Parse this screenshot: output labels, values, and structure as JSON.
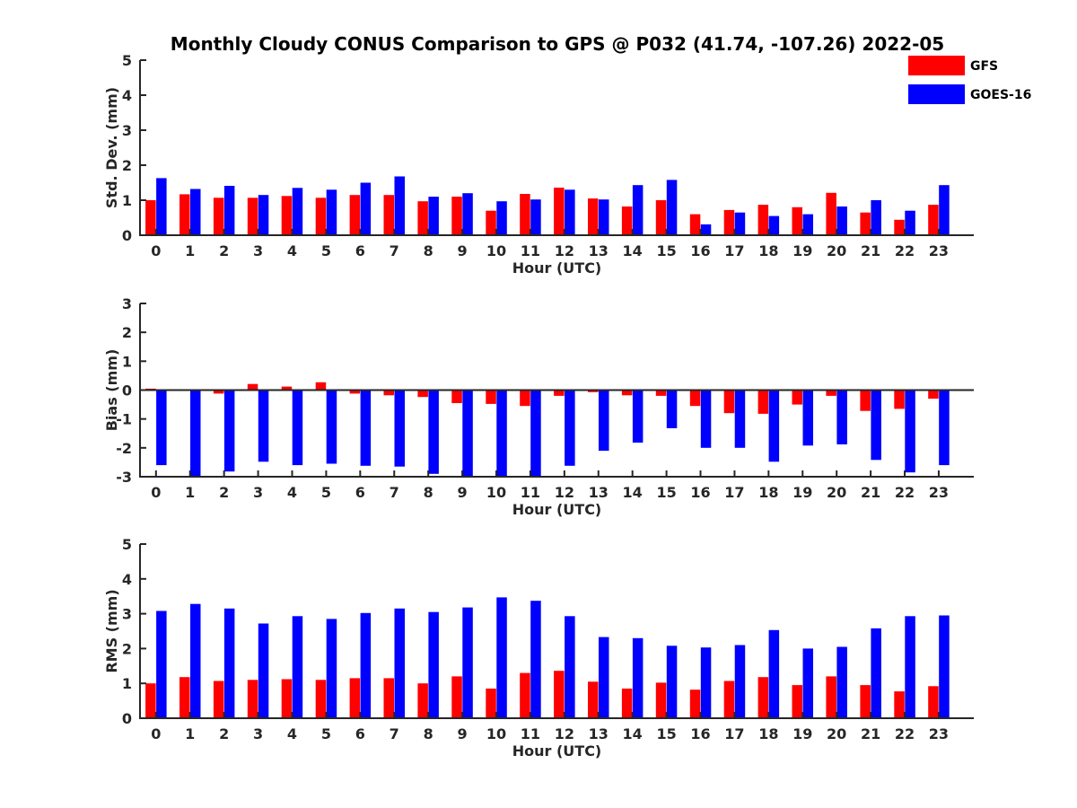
{
  "figure": {
    "title": "Monthly Cloudy CONUS Comparison to GPS @ P032 (41.74, -107.26) 2022-05"
  },
  "chart_data": [
    {
      "type": "bar",
      "id": "std",
      "ylabel": "Std. Dev. (mm)",
      "xlabel": "Hour (UTC)",
      "ylim": [
        0,
        5
      ],
      "yticks": [
        0,
        1,
        2,
        3,
        4,
        5
      ],
      "categories": [
        "0",
        "1",
        "2",
        "3",
        "4",
        "5",
        "6",
        "7",
        "8",
        "9",
        "10",
        "11",
        "12",
        "13",
        "14",
        "15",
        "16",
        "17",
        "18",
        "19",
        "20",
        "21",
        "22",
        "23"
      ],
      "series": [
        {
          "name": "GFS",
          "color": "#ff0000",
          "values": [
            1.0,
            1.17,
            1.07,
            1.07,
            1.12,
            1.07,
            1.15,
            1.15,
            0.97,
            1.1,
            0.7,
            1.18,
            1.36,
            1.05,
            0.82,
            1.0,
            0.6,
            0.72,
            0.87,
            0.8,
            1.21,
            0.65,
            0.44,
            0.87
          ]
        },
        {
          "name": "GOES-16",
          "color": "#0000ff",
          "values": [
            1.63,
            1.32,
            1.41,
            1.15,
            1.35,
            1.3,
            1.5,
            1.68,
            1.1,
            1.2,
            0.97,
            1.02,
            1.3,
            1.02,
            1.43,
            1.58,
            0.31,
            0.65,
            0.55,
            0.6,
            0.82,
            1.0,
            0.7,
            1.43
          ]
        }
      ],
      "legend": "top-right"
    },
    {
      "type": "bar",
      "id": "bias",
      "ylabel": "Bias (mm)",
      "xlabel": "Hour (UTC)",
      "ylim": [
        -3,
        3
      ],
      "yticks": [
        -3,
        -2,
        -1,
        0,
        1,
        2,
        3
      ],
      "categories": [
        "0",
        "1",
        "2",
        "3",
        "4",
        "5",
        "6",
        "7",
        "8",
        "9",
        "10",
        "11",
        "12",
        "13",
        "14",
        "15",
        "16",
        "17",
        "18",
        "19",
        "20",
        "21",
        "22",
        "23"
      ],
      "series": [
        {
          "name": "GFS",
          "color": "#ff0000",
          "values": [
            0.05,
            0.02,
            -0.12,
            0.21,
            0.12,
            0.27,
            -0.12,
            -0.18,
            -0.24,
            -0.45,
            -0.48,
            -0.55,
            -0.2,
            -0.07,
            -0.18,
            -0.2,
            -0.55,
            -0.8,
            -0.82,
            -0.5,
            -0.2,
            -0.72,
            -0.65,
            -0.3
          ]
        },
        {
          "name": "GOES-16",
          "color": "#0000ff",
          "values": [
            -2.6,
            -3.0,
            -2.82,
            -2.48,
            -2.6,
            -2.55,
            -2.62,
            -2.65,
            -2.9,
            -3.0,
            -3.0,
            -3.0,
            -2.62,
            -2.1,
            -1.82,
            -1.32,
            -2.0,
            -2.0,
            -2.48,
            -1.92,
            -1.88,
            -2.42,
            -2.85,
            -2.6
          ]
        }
      ]
    },
    {
      "type": "bar",
      "id": "rms",
      "ylabel": "RMS (mm)",
      "xlabel": "Hour (UTC)",
      "ylim": [
        0,
        5
      ],
      "yticks": [
        0,
        1,
        2,
        3,
        4,
        5
      ],
      "categories": [
        "0",
        "1",
        "2",
        "3",
        "4",
        "5",
        "6",
        "7",
        "8",
        "9",
        "10",
        "11",
        "12",
        "13",
        "14",
        "15",
        "16",
        "17",
        "18",
        "19",
        "20",
        "21",
        "22",
        "23"
      ],
      "series": [
        {
          "name": "GFS",
          "color": "#ff0000",
          "values": [
            1.0,
            1.18,
            1.07,
            1.1,
            1.12,
            1.1,
            1.15,
            1.15,
            1.0,
            1.2,
            0.85,
            1.3,
            1.36,
            1.05,
            0.85,
            1.02,
            0.82,
            1.07,
            1.18,
            0.95,
            1.2,
            0.95,
            0.77,
            0.92
          ]
        },
        {
          "name": "GOES-16",
          "color": "#0000ff",
          "values": [
            3.08,
            3.28,
            3.15,
            2.72,
            2.93,
            2.85,
            3.02,
            3.15,
            3.05,
            3.18,
            3.47,
            3.37,
            2.93,
            2.33,
            2.3,
            2.08,
            2.03,
            2.1,
            2.53,
            2.0,
            2.05,
            2.58,
            2.93,
            2.95
          ]
        }
      ]
    }
  ]
}
